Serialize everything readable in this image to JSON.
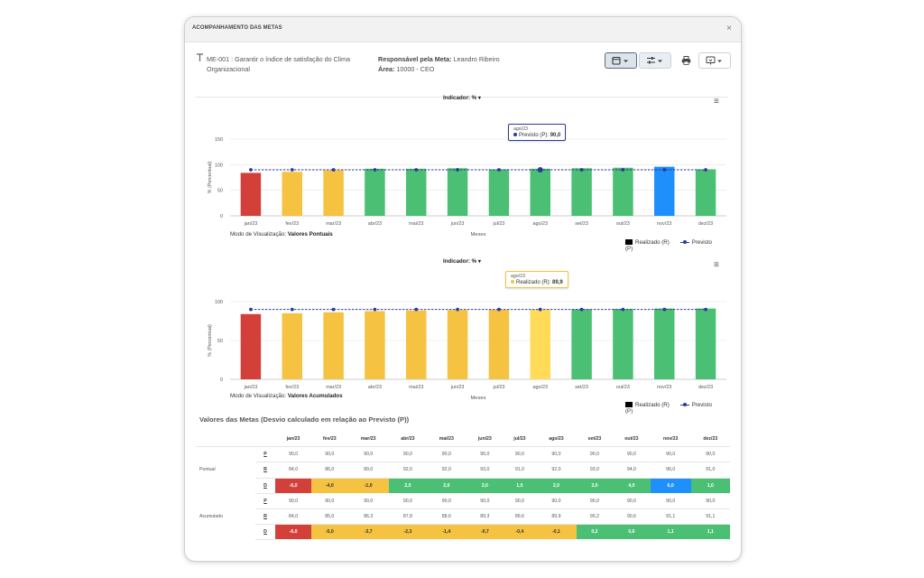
{
  "modal": {
    "title": "ACOMPANHAMENTO DAS METAS",
    "close": "×"
  },
  "meta": {
    "icon": "target-icon",
    "name": "ME-001 : Garantir o índice de satisfação do Clima Organizacional",
    "responsavel_label": "Responsável pela Meta:",
    "responsavel": "Leandro Ribeiro",
    "area_label": "Área:",
    "area": "10000 - CEO"
  },
  "toolbar": {
    "calendar": "calendar-icon",
    "filter": "sliders-icon",
    "print": "printer-icon",
    "export": "export-icon"
  },
  "charts": [
    {
      "title": "Indicador: % ▾",
      "modo_label": "Modo de Visualização:",
      "modo": "Valores Pontuais",
      "tooltip": {
        "month": "ago/23",
        "label": "Previsto (P):",
        "value": "90,0"
      }
    },
    {
      "title": "Indicador: % ▾",
      "modo_label": "Modo de Visualização:",
      "modo": "Valores Acumulados",
      "tooltip": {
        "month": "ago/23",
        "label": "Realizado (R):",
        "value": "89,9"
      }
    }
  ],
  "legend": {
    "realizado": "Realizado (R)",
    "previsto": "Previsto (P)"
  },
  "chart_data": [
    {
      "type": "bar",
      "categories": [
        "jan/23",
        "fev/23",
        "mar/23",
        "abr/23",
        "mai/23",
        "jun/23",
        "jul/23",
        "ago/23",
        "set/23",
        "out/23",
        "nov/23",
        "dez/23"
      ],
      "series": [
        {
          "name": "Realizado (R)",
          "values": [
            84.0,
            86.0,
            89.0,
            92.0,
            92.0,
            93.0,
            91.0,
            92.0,
            93.0,
            94.0,
            96.0,
            91.0
          ],
          "colors": [
            "#d3403a",
            "#f5c242",
            "#f5c242",
            "#4bbf73",
            "#4bbf73",
            "#4bbf73",
            "#4bbf73",
            "#4bbf73",
            "#4bbf73",
            "#4bbf73",
            "#1e8ffb",
            "#4bbf73"
          ]
        },
        {
          "name": "Previsto (P)",
          "type": "line",
          "values": [
            90,
            90,
            90,
            90,
            90,
            90,
            90,
            90,
            90,
            90,
            90,
            90
          ]
        }
      ],
      "xlabel": "Meses",
      "ylabel": "% (Percentual)",
      "yticks": [
        0,
        50,
        100,
        150
      ],
      "ylim": [
        0,
        150
      ]
    },
    {
      "type": "bar",
      "categories": [
        "jan/23",
        "fev/23",
        "mar/23",
        "abr/23",
        "mai/23",
        "jun/23",
        "jul/23",
        "ago/23",
        "set/23",
        "out/23",
        "nov/23",
        "dez/23"
      ],
      "series": [
        {
          "name": "Realizado (R)",
          "values": [
            84.0,
            85.0,
            86.3,
            87.8,
            88.6,
            89.3,
            89.6,
            89.9,
            90.2,
            90.6,
            91.1,
            91.1
          ],
          "colors": [
            "#d3403a",
            "#f5c242",
            "#f5c242",
            "#f5c242",
            "#f5c242",
            "#f5c242",
            "#f5c242",
            "#ffdb58",
            "#4bbf73",
            "#4bbf73",
            "#4bbf73",
            "#4bbf73"
          ]
        },
        {
          "name": "Previsto (P)",
          "type": "line",
          "values": [
            90,
            90,
            90,
            90,
            90,
            90,
            90,
            90,
            90,
            90,
            90,
            90
          ]
        }
      ],
      "xlabel": "Meses",
      "ylabel": "% (Percentual)",
      "yticks": [
        0,
        50,
        100
      ],
      "ylim": [
        0,
        100
      ]
    }
  ],
  "table": {
    "title": "Valores das Metas (Desvio calculado em relação ao Previsto (P))",
    "months": [
      "jan/23",
      "fev/23",
      "mar/23",
      "abr/23",
      "mai/23",
      "jun/23",
      "jul/23",
      "ago/23",
      "set/23",
      "out/23",
      "nov/23",
      "dez/23"
    ],
    "groups": [
      {
        "name": "Pontual",
        "rows": [
          {
            "label": "P",
            "values": [
              "90,0",
              "90,0",
              "90,0",
              "90,0",
              "90,0",
              "90,0",
              "90,0",
              "90,0",
              "90,0",
              "90,0",
              "90,0",
              "90,0"
            ]
          },
          {
            "label": "R",
            "values": [
              "84,0",
              "86,0",
              "89,0",
              "92,0",
              "92,0",
              "93,0",
              "91,0",
              "92,0",
              "93,0",
              "94,0",
              "96,0",
              "91,0"
            ]
          },
          {
            "label": "D",
            "values": [
              "-6,0",
              "-4,0",
              "-1,0",
              "2,0",
              "2,0",
              "3,0",
              "1,0",
              "2,0",
              "3,0",
              "4,0",
              "6,0",
              "1,0"
            ],
            "colors": [
              "red",
              "yellow",
              "yellow",
              "green",
              "green",
              "green",
              "green",
              "green",
              "green",
              "green",
              "blue",
              "green"
            ]
          }
        ]
      },
      {
        "name": "Acumulado",
        "rows": [
          {
            "label": "P",
            "values": [
              "90,0",
              "90,0",
              "90,0",
              "90,0",
              "90,0",
              "90,0",
              "90,0",
              "90,0",
              "90,0",
              "90,0",
              "90,0",
              "90,0"
            ]
          },
          {
            "label": "R",
            "values": [
              "84,0",
              "85,0",
              "86,3",
              "87,8",
              "88,6",
              "89,3",
              "89,6",
              "89,9",
              "90,2",
              "90,6",
              "91,1",
              "91,1"
            ]
          },
          {
            "label": "D",
            "values": [
              "-6,0",
              "-5,0",
              "-3,7",
              "-2,3",
              "-1,4",
              "-0,7",
              "-0,4",
              "-0,1",
              "0,2",
              "0,6",
              "1,1",
              "1,1"
            ],
            "colors": [
              "red",
              "yellow",
              "yellow",
              "yellow",
              "yellow",
              "yellow",
              "yellow",
              "yellow",
              "green",
              "green",
              "green",
              "green"
            ]
          }
        ]
      }
    ]
  }
}
